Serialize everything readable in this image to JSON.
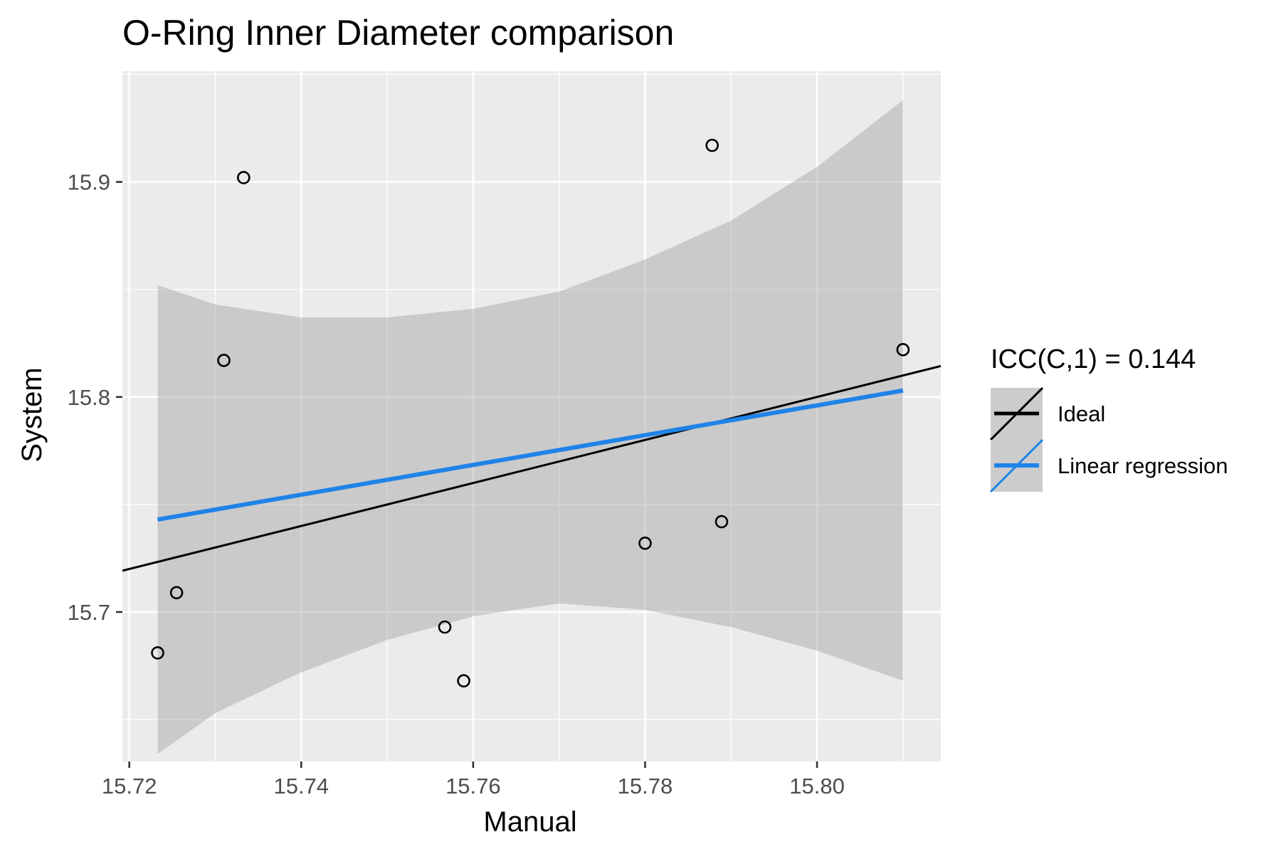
{
  "chart_data": {
    "type": "scatter",
    "title": "O-Ring Inner Diameter comparison",
    "xlabel": "Manual",
    "ylabel": "System",
    "xlim": [
      15.7192,
      15.8144
    ],
    "ylim": [
      15.6305,
      15.9515
    ],
    "x_ticks": [
      15.72,
      15.74,
      15.76,
      15.78,
      15.8
    ],
    "x_tick_labels": [
      "15.72",
      "15.74",
      "15.76",
      "15.78",
      "15.80"
    ],
    "y_ticks": [
      15.7,
      15.8,
      15.9
    ],
    "y_tick_labels": [
      "15.7",
      "15.8",
      "15.9"
    ],
    "grid": true,
    "points": [
      {
        "x": 15.7233,
        "y": 15.681
      },
      {
        "x": 15.7255,
        "y": 15.709
      },
      {
        "x": 15.731,
        "y": 15.817
      },
      {
        "x": 15.7333,
        "y": 15.902
      },
      {
        "x": 15.7567,
        "y": 15.693
      },
      {
        "x": 15.7589,
        "y": 15.668
      },
      {
        "x": 15.78,
        "y": 15.732
      },
      {
        "x": 15.7878,
        "y": 15.917
      },
      {
        "x": 15.7889,
        "y": 15.742
      },
      {
        "x": 15.81,
        "y": 15.822
      }
    ],
    "ideal_line": {
      "name": "Ideal",
      "slope": 1,
      "intercept": 0,
      "color": "#000000"
    },
    "regression_line": {
      "name": "Linear regression",
      "x": [
        15.7233,
        15.81
      ],
      "y": [
        15.743,
        15.803
      ],
      "color": "#1f83e8"
    },
    "confidence_band": {
      "x": [
        15.7233,
        15.73,
        15.74,
        15.75,
        15.76,
        15.77,
        15.78,
        15.79,
        15.8,
        15.81
      ],
      "upper": [
        15.852,
        15.843,
        15.837,
        15.837,
        15.841,
        15.849,
        15.864,
        15.882,
        15.907,
        15.938
      ],
      "lower": [
        15.634,
        15.653,
        15.672,
        15.687,
        15.698,
        15.704,
        15.701,
        15.693,
        15.682,
        15.668
      ],
      "color": "#999999"
    },
    "legend": {
      "title": "ICC(C,1) = 0.144",
      "position": "right",
      "entries": [
        "Ideal",
        "Linear regression"
      ]
    },
    "panel_color": "#ebebeb",
    "grid_color": "#ffffff"
  }
}
